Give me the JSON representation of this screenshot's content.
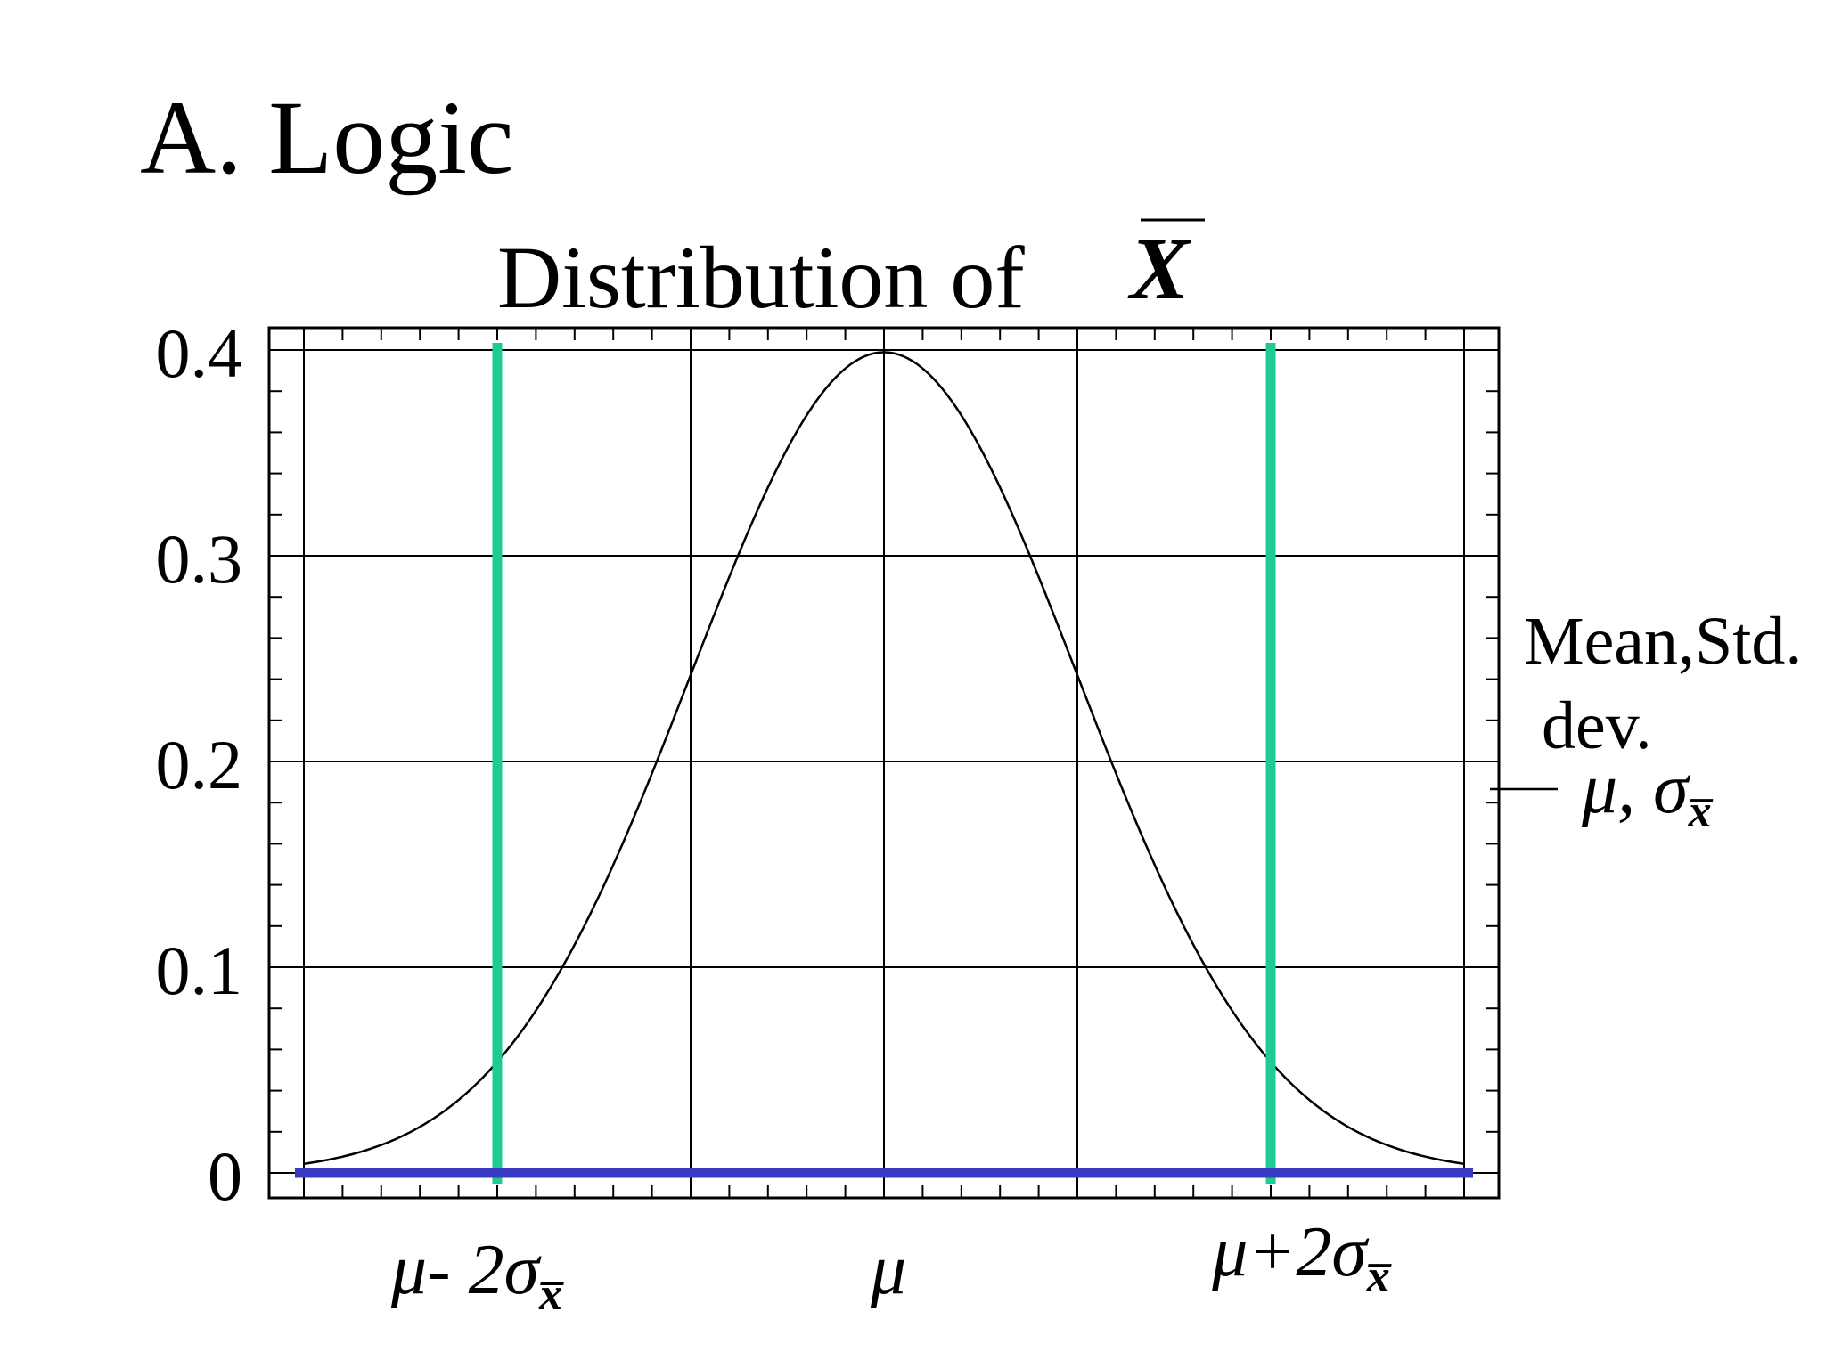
{
  "slide": {
    "title": "A. Logic"
  },
  "colors": {
    "background": "#ffffff",
    "curve": "#000000",
    "grid": "#000000",
    "bound_lines": "#1ecb95",
    "baseline": "#3a3ac0"
  },
  "chart_data": {
    "type": "line",
    "title_prefix": "Distribution of",
    "title_symbol": "X",
    "title_symbol_overline": true,
    "xlim": [
      -3,
      3
    ],
    "ylim": [
      0,
      0.4
    ],
    "grid": true,
    "y_ticks": [
      0,
      0.1,
      0.2,
      0.3,
      0.4
    ],
    "y_tick_labels": [
      "0",
      "0.1",
      "0.2",
      "0.3",
      "0.4"
    ],
    "x_gridlines": [
      -3,
      -1,
      0,
      1,
      3
    ],
    "x_labels": [
      {
        "at": -2,
        "main": "μ- 2σ",
        "sub": "x̅"
      },
      {
        "at": 0,
        "main": "μ",
        "sub": ""
      },
      {
        "at": 2,
        "main": "μ+2σ",
        "sub": "x̅"
      }
    ],
    "series": [
      {
        "function": "standard normal density",
        "x": [
          -3,
          -2.75,
          -2.5,
          -2.25,
          -2,
          -1.75,
          -1.5,
          -1.25,
          -1,
          -0.75,
          -0.5,
          -0.25,
          0,
          0.25,
          0.5,
          0.75,
          1,
          1.25,
          1.5,
          1.75,
          2,
          2.25,
          2.5,
          2.75,
          3
        ],
        "y": [
          0.0044,
          0.0091,
          0.0175,
          0.0317,
          0.054,
          0.0863,
          0.1295,
          0.1826,
          0.242,
          0.3011,
          0.3521,
          0.3867,
          0.3989,
          0.3867,
          0.3521,
          0.3011,
          0.242,
          0.1826,
          0.1295,
          0.0863,
          0.054,
          0.0317,
          0.0175,
          0.0091,
          0.0044
        ]
      }
    ],
    "vertical_lines": [
      {
        "x": -2,
        "label": "μ- 2σx̅"
      },
      {
        "x": 2,
        "label": "μ+2σx̅"
      }
    ],
    "baseline": {
      "y": 0,
      "from": -3,
      "to": 3
    },
    "annotation": {
      "line1": "Mean,Std.",
      "line2": "dev.",
      "math_main": "μ, σ",
      "math_sub": "x̅"
    }
  }
}
